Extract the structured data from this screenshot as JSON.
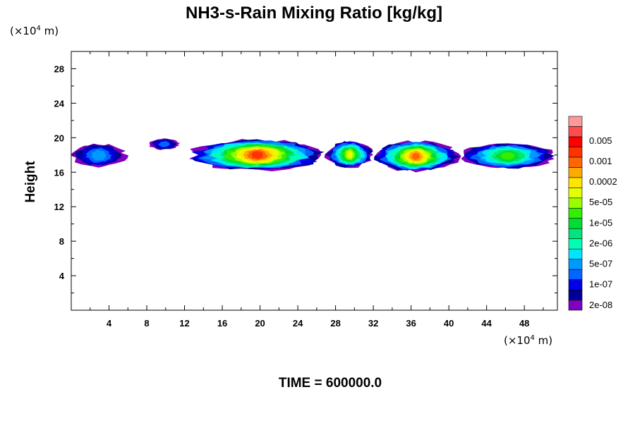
{
  "chart_data": {
    "type": "heatmap",
    "title": "NH3-s-Rain Mixing Ratio [kg/kg]",
    "xlabel": "",
    "ylabel": "Height",
    "x_unit_prefix": "(×10",
    "x_unit_exp": "4",
    "x_unit_suffix": " m)",
    "y_unit_prefix": "(×10",
    "y_unit_exp": "4",
    "y_unit_suffix": " m)",
    "xlim": [
      0,
      51.5
    ],
    "ylim": [
      0,
      30
    ],
    "x_ticks": [
      4,
      8,
      12,
      16,
      20,
      24,
      28,
      32,
      36,
      40,
      44,
      48
    ],
    "y_ticks": [
      4,
      8,
      12,
      16,
      20,
      24,
      28
    ],
    "colorbar": {
      "colors": [
        "#7f00bf",
        "#000099",
        "#0000e6",
        "#0066ff",
        "#0099ff",
        "#00e6ff",
        "#00ffb3",
        "#00e67a",
        "#00dd33",
        "#33ee00",
        "#99ff00",
        "#e6ff00",
        "#ffe600",
        "#ffaa00",
        "#ff6600",
        "#ff3300",
        "#ff0000",
        "#ff4d4d",
        "#ff9999"
      ],
      "labels": [
        "2e-08",
        "1e-07",
        "5e-07",
        "2e-06",
        "1e-05",
        "5e-05",
        "0.0002",
        "0.001",
        "0.005"
      ]
    },
    "layer": {
      "description_levels": [
        "edge",
        "mid",
        "core"
      ],
      "segments": [
        {
          "x0": 0.0,
          "x1": 5.8,
          "ymin": 16.6,
          "ymax": 19.3,
          "peak_level": 4
        },
        {
          "x0": 8.2,
          "x1": 11.5,
          "ymin": 18.6,
          "ymax": 19.9,
          "peak_level": 3
        },
        {
          "x0": 12.4,
          "x1": 27.0,
          "ymin": 16.2,
          "ymax": 19.8,
          "peak_level": 15
        },
        {
          "x0": 27.0,
          "x1": 32.0,
          "ymin": 16.5,
          "ymax": 19.6,
          "peak_level": 11
        },
        {
          "x0": 32.0,
          "x1": 41.0,
          "ymin": 16.1,
          "ymax": 19.6,
          "peak_level": 14
        },
        {
          "x0": 41.0,
          "x1": 51.5,
          "ymin": 16.4,
          "ymax": 19.4,
          "peak_level": 9
        }
      ]
    }
  },
  "footer": {
    "time_label": "TIME = 600000.0"
  }
}
